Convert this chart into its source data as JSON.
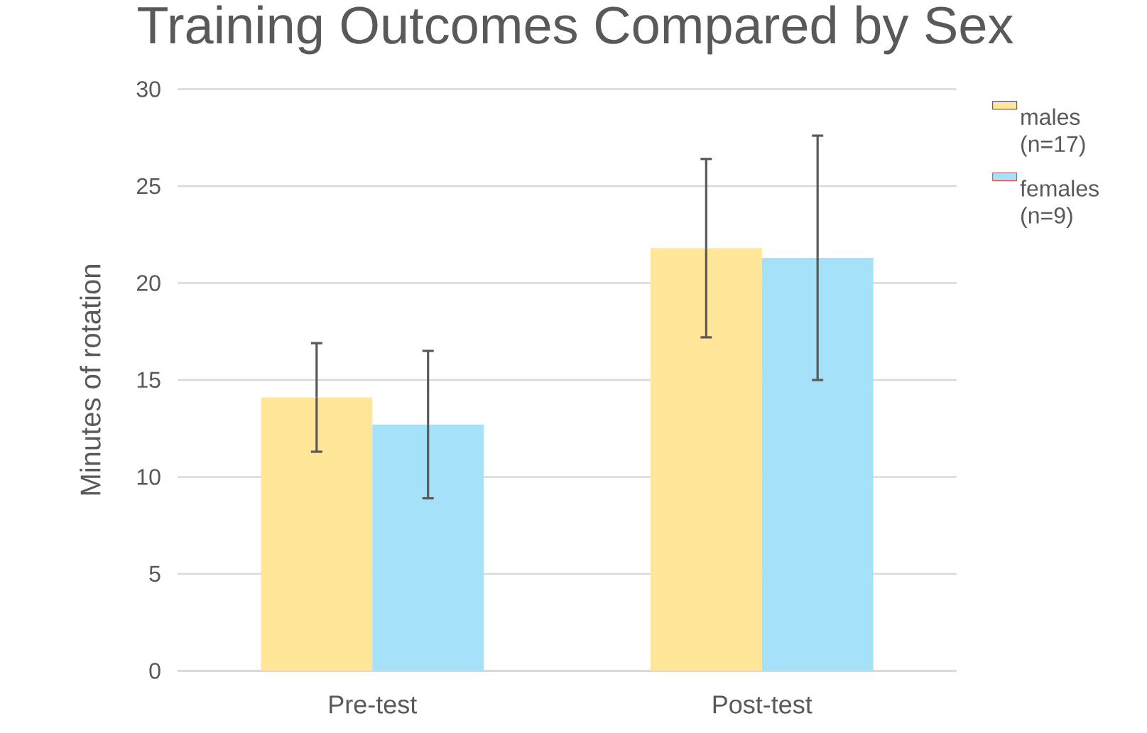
{
  "chart_data": {
    "type": "bar",
    "title": "Training Outcomes Compared by Sex",
    "ylabel": "Minutes of rotation",
    "categories": [
      "Pre-test",
      "Post-test"
    ],
    "series": [
      {
        "name": "males (n=17)",
        "color": "#ffe699",
        "values": [
          14.1,
          21.8
        ],
        "errors": [
          2.8,
          4.6
        ]
      },
      {
        "name": "females (n=9)",
        "color": "#a6e1fa",
        "values": [
          12.7,
          21.3
        ],
        "errors": [
          3.8,
          6.3
        ]
      }
    ],
    "ylim": [
      0,
      30
    ],
    "yticks": [
      0,
      5,
      10,
      15,
      20,
      25,
      30
    ],
    "grid": "y",
    "legend": "right"
  }
}
